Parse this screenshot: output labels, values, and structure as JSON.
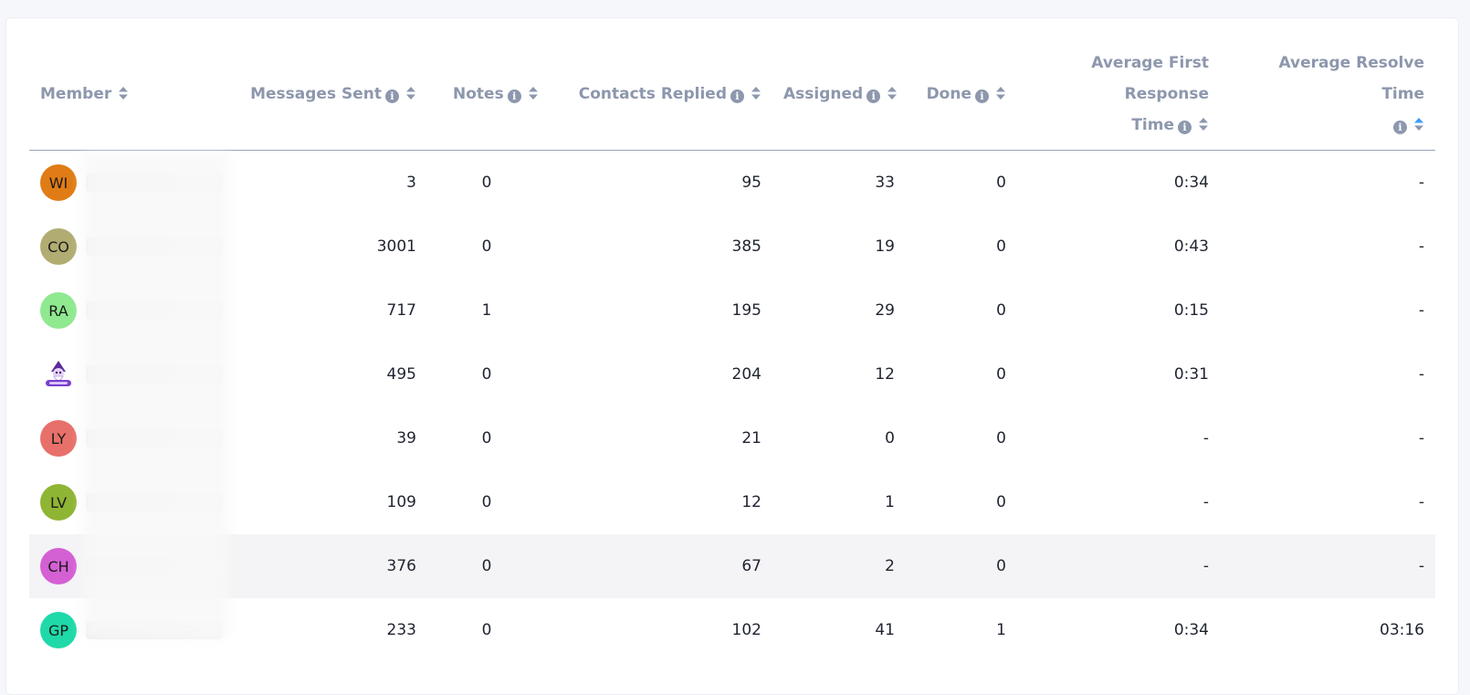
{
  "headers": {
    "member": "Member",
    "messages_sent": "Messages Sent",
    "notes": "Notes",
    "contacts_replied": "Contacts Replied",
    "assigned": "Assigned",
    "done": "Done",
    "avg_first_response_line1": "Average First Response",
    "avg_first_response_line2": "Time",
    "avg_resolve": "Average Resolve Time"
  },
  "info_glyph": "i",
  "colors": {
    "sort_active": "#3b9cf7",
    "sort_inactive": "#8d97ad"
  },
  "rows": [
    {
      "initials": "WI",
      "avatar_color": "#e07c15",
      "messages": "3",
      "notes": "0",
      "contacts": "95",
      "assigned": "33",
      "done": "0",
      "first_response": "0:34",
      "resolve": "-"
    },
    {
      "initials": "CO",
      "avatar_color": "#b1ad72",
      "messages": "3001",
      "notes": "0",
      "contacts": "385",
      "assigned": "19",
      "done": "0",
      "first_response": "0:43",
      "resolve": "-"
    },
    {
      "initials": "RA",
      "avatar_color": "#8fe98f",
      "messages": "717",
      "notes": "1",
      "contacts": "195",
      "assigned": "29",
      "done": "0",
      "first_response": "0:15",
      "resolve": "-"
    },
    {
      "initials": "",
      "avatar_color": "#ffffff",
      "avatar_icon": "wizard-logo-icon",
      "messages": "495",
      "notes": "0",
      "contacts": "204",
      "assigned": "12",
      "done": "0",
      "first_response": "0:31",
      "resolve": "-"
    },
    {
      "initials": "LY",
      "avatar_color": "#e8706a",
      "messages": "39",
      "notes": "0",
      "contacts": "21",
      "assigned": "0",
      "done": "0",
      "first_response": "-",
      "resolve": "-"
    },
    {
      "initials": "LV",
      "avatar_color": "#8fb534",
      "messages": "109",
      "notes": "0",
      "contacts": "12",
      "assigned": "1",
      "done": "0",
      "first_response": "-",
      "resolve": "-"
    },
    {
      "initials": "CH",
      "avatar_color": "#d460d4",
      "messages": "376",
      "notes": "0",
      "contacts": "67",
      "assigned": "2",
      "done": "0",
      "first_response": "-",
      "resolve": "-",
      "highlighted": true
    },
    {
      "initials": "GP",
      "avatar_color": "#1fd9a8",
      "messages": "233",
      "notes": "0",
      "contacts": "102",
      "assigned": "41",
      "done": "1",
      "first_response": "0:34",
      "resolve": "03:16"
    }
  ]
}
